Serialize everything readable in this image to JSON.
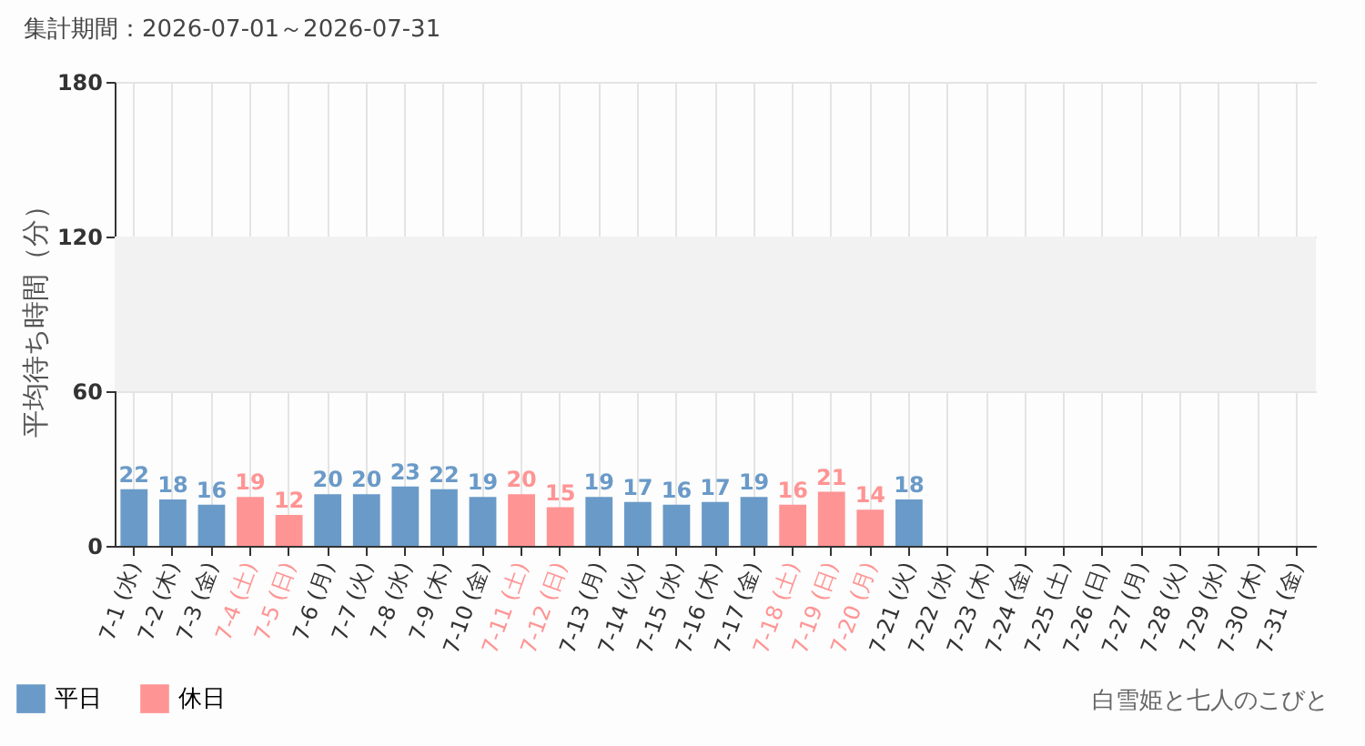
{
  "chart_data": {
    "type": "bar",
    "title": "集計期間：2026-07-01～2026-07-31",
    "ylabel": "平均待ち時間（分）",
    "categories": [
      "7-1 (水)",
      "7-2 (木)",
      "7-3 (金)",
      "7-4 (土)",
      "7-5 (日)",
      "7-6 (月)",
      "7-7 (火)",
      "7-8 (水)",
      "7-9 (木)",
      "7-10 (金)",
      "7-11 (土)",
      "7-12 (日)",
      "7-13 (月)",
      "7-14 (火)",
      "7-15 (水)",
      "7-16 (木)",
      "7-17 (金)",
      "7-18 (土)",
      "7-19 (日)",
      "7-20 (月)",
      "7-21 (火)",
      "7-22 (水)",
      "7-23 (木)",
      "7-24 (金)",
      "7-25 (土)",
      "7-26 (日)",
      "7-27 (月)",
      "7-28 (火)",
      "7-29 (水)",
      "7-30 (木)",
      "7-31 (金)"
    ],
    "series": [
      {
        "name": "平日",
        "color": "#6a9ac8",
        "values": [
          22,
          18,
          16,
          null,
          null,
          20,
          20,
          23,
          22,
          19,
          null,
          null,
          19,
          17,
          16,
          17,
          19,
          null,
          null,
          null,
          18,
          null,
          null,
          null,
          null,
          null,
          null,
          null,
          null,
          null,
          null
        ]
      },
      {
        "name": "休日",
        "color": "#ff9494",
        "values": [
          null,
          null,
          null,
          19,
          12,
          null,
          null,
          null,
          null,
          null,
          20,
          15,
          null,
          null,
          null,
          null,
          null,
          16,
          21,
          14,
          null,
          null,
          null,
          null,
          null,
          null,
          null,
          null,
          null,
          null,
          null
        ]
      }
    ],
    "ylim": [
      0,
      180
    ],
    "yticks": [
      0,
      60,
      120,
      180
    ],
    "grid": true,
    "data_labels": true,
    "legend": "bottom left",
    "bands": [
      {
        "axis": "y",
        "from": 60,
        "to": 120,
        "color": "#f2f2f2"
      }
    ],
    "annotations": [
      "白雪姫と七人のこびと"
    ]
  }
}
